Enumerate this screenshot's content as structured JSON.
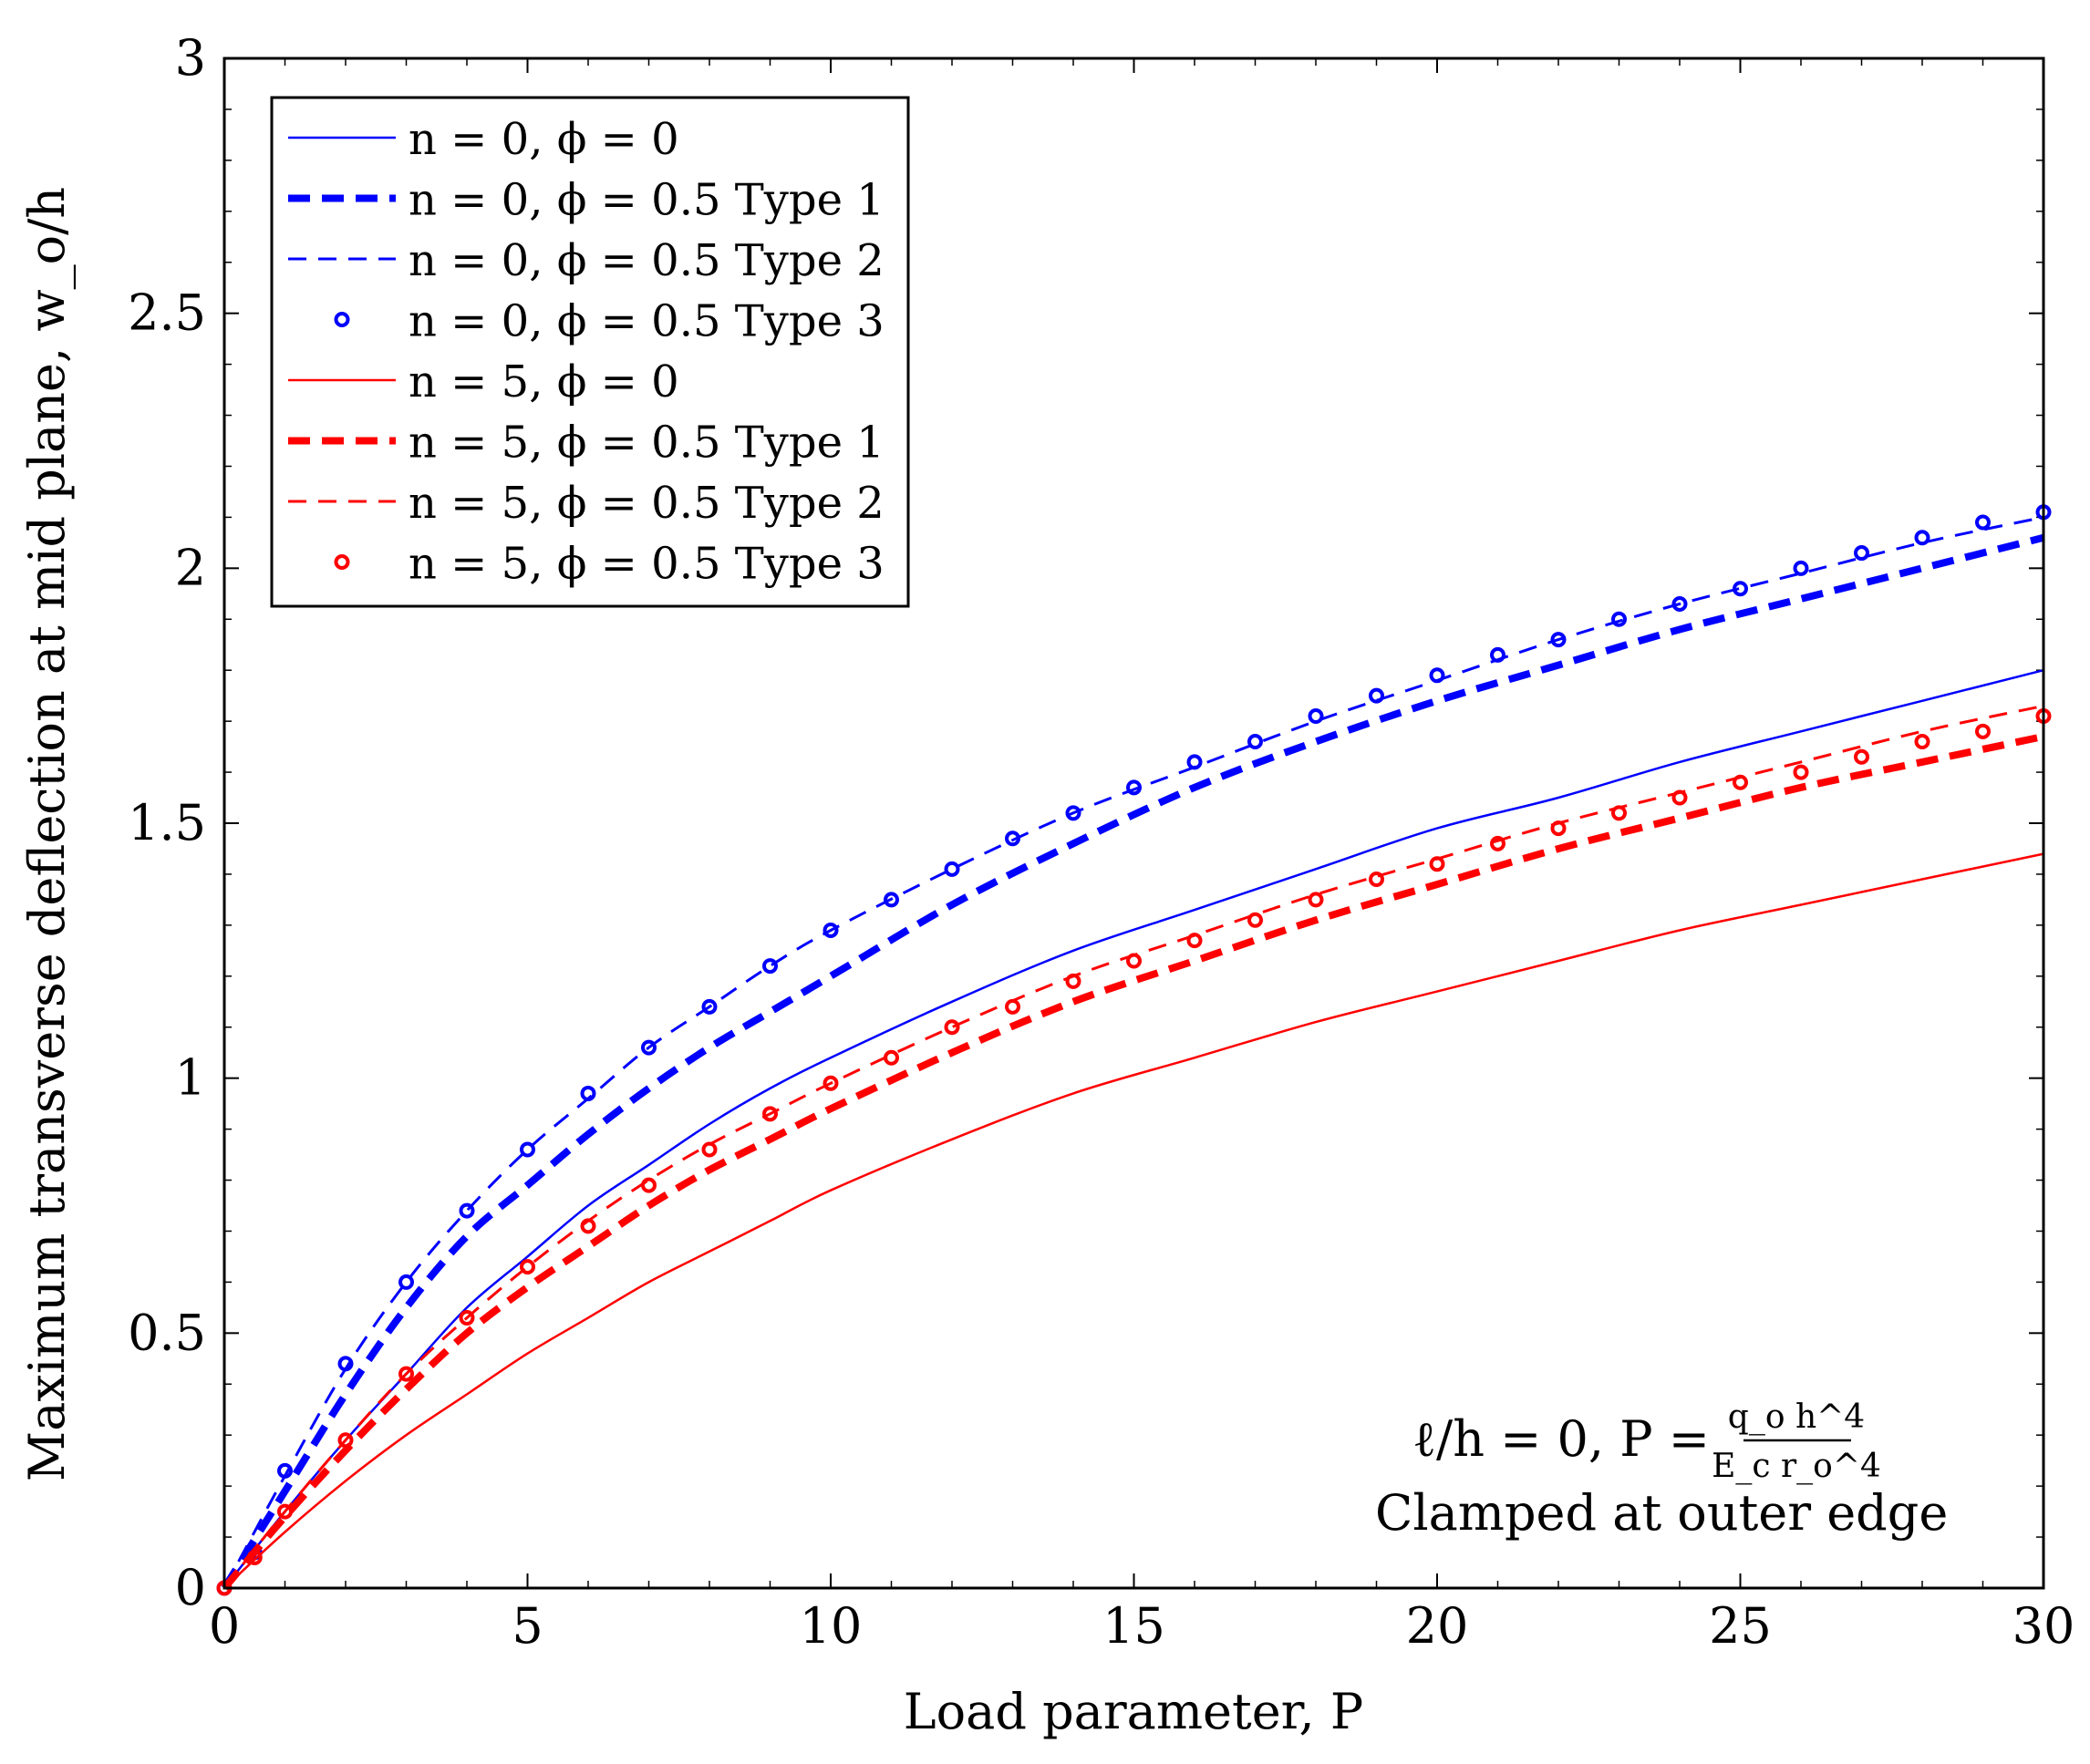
{
  "chart_data": {
    "type": "line",
    "xlabel": "Load parameter, P",
    "ylabel": "Maximum transverse deflection at mid plane, w_o/h",
    "xlim": [
      0,
      30
    ],
    "ylim": [
      0,
      3
    ],
    "xticks": [
      0,
      5,
      10,
      15,
      20,
      25,
      30
    ],
    "yticks": [
      0,
      0.5,
      1,
      1.5,
      2,
      2.5,
      3
    ],
    "xtick_labels": [
      "0",
      "5",
      "10",
      "15",
      "20",
      "25",
      "30"
    ],
    "ytick_labels": [
      "0",
      "0.5",
      "1",
      "1.5",
      "2",
      "2.5",
      "3"
    ],
    "grid": false,
    "legend_position": "top-left",
    "annotation": {
      "line1": "ℓ/h = 0,  P =",
      "frac_num": "q_o h^4",
      "frac_den": "E_c r_o^4",
      "line2": "Clamped at outer edge"
    },
    "series": [
      {
        "name": "n = 0, ϕ = 0",
        "color": "#0000ff",
        "style": "solid",
        "x": [
          0,
          1,
          2,
          3,
          4,
          5,
          6,
          7,
          8,
          9,
          10,
          12,
          14,
          16,
          18,
          20,
          22,
          24,
          26,
          28,
          30
        ],
        "y": [
          0,
          0.15,
          0.29,
          0.42,
          0.55,
          0.65,
          0.75,
          0.83,
          0.91,
          0.98,
          1.04,
          1.15,
          1.25,
          1.33,
          1.41,
          1.49,
          1.55,
          1.62,
          1.68,
          1.74,
          1.8
        ]
      },
      {
        "name": "n = 0, ϕ = 0.5 Type 1",
        "color": "#0000ff",
        "style": "thick-dash",
        "x": [
          0,
          1,
          2,
          3,
          4,
          5,
          6,
          7,
          8,
          9,
          10,
          12,
          14,
          16,
          18,
          20,
          22,
          24,
          26,
          28,
          30
        ],
        "y": [
          0,
          0.19,
          0.38,
          0.55,
          0.69,
          0.79,
          0.89,
          0.98,
          1.06,
          1.13,
          1.2,
          1.34,
          1.46,
          1.57,
          1.66,
          1.74,
          1.81,
          1.88,
          1.94,
          2.0,
          2.06
        ]
      },
      {
        "name": "n = 0, ϕ = 0.5 Type 2",
        "color": "#0000ff",
        "style": "dash",
        "x": [
          0,
          1,
          2,
          3,
          4,
          5,
          6,
          7,
          8,
          9,
          10,
          12,
          14,
          16,
          18,
          20,
          22,
          24,
          26,
          28,
          30
        ],
        "y": [
          0,
          0.22,
          0.43,
          0.6,
          0.74,
          0.86,
          0.96,
          1.06,
          1.14,
          1.22,
          1.29,
          1.41,
          1.52,
          1.61,
          1.7,
          1.78,
          1.86,
          1.93,
          1.99,
          2.05,
          2.1
        ]
      },
      {
        "name": "n = 0, ϕ = 0.5 Type 3",
        "color": "#0000ff",
        "style": "marker",
        "x": [
          0,
          0.5,
          1,
          2,
          3,
          4,
          5,
          6,
          7,
          8,
          9,
          10,
          11,
          12,
          13,
          14,
          15,
          16,
          17,
          18,
          19,
          20,
          21,
          22,
          23,
          24,
          25,
          26,
          27,
          28,
          29,
          30
        ],
        "y": [
          0,
          0.07,
          0.23,
          0.44,
          0.6,
          0.74,
          0.86,
          0.97,
          1.06,
          1.14,
          1.22,
          1.29,
          1.35,
          1.41,
          1.47,
          1.52,
          1.57,
          1.62,
          1.66,
          1.71,
          1.75,
          1.79,
          1.83,
          1.86,
          1.9,
          1.93,
          1.96,
          2.0,
          2.03,
          2.06,
          2.09,
          2.11
        ]
      },
      {
        "name": "n = 5, ϕ = 0",
        "color": "#ff0000",
        "style": "solid",
        "x": [
          0,
          1,
          2,
          3,
          4,
          5,
          6,
          7,
          8,
          9,
          10,
          12,
          14,
          16,
          18,
          20,
          22,
          24,
          26,
          28,
          30
        ],
        "y": [
          0,
          0.11,
          0.21,
          0.3,
          0.38,
          0.46,
          0.53,
          0.6,
          0.66,
          0.72,
          0.78,
          0.88,
          0.97,
          1.04,
          1.11,
          1.17,
          1.23,
          1.29,
          1.34,
          1.39,
          1.44
        ]
      },
      {
        "name": "n = 5, ϕ = 0.5 Type 1",
        "color": "#ff0000",
        "style": "thick-dash",
        "x": [
          0,
          1,
          2,
          3,
          4,
          5,
          6,
          7,
          8,
          9,
          10,
          12,
          14,
          16,
          18,
          20,
          22,
          24,
          26,
          28,
          30
        ],
        "y": [
          0,
          0.14,
          0.27,
          0.39,
          0.5,
          0.59,
          0.67,
          0.75,
          0.82,
          0.88,
          0.94,
          1.05,
          1.15,
          1.23,
          1.31,
          1.38,
          1.45,
          1.51,
          1.57,
          1.62,
          1.67
        ]
      },
      {
        "name": "n = 5, ϕ = 0.5 Type 2",
        "color": "#ff0000",
        "style": "dash",
        "x": [
          0,
          1,
          2,
          3,
          4,
          5,
          6,
          7,
          8,
          9,
          10,
          12,
          14,
          16,
          18,
          20,
          22,
          24,
          26,
          28,
          30
        ],
        "y": [
          0,
          0.15,
          0.29,
          0.42,
          0.53,
          0.63,
          0.72,
          0.8,
          0.87,
          0.93,
          0.99,
          1.1,
          1.2,
          1.28,
          1.36,
          1.43,
          1.5,
          1.56,
          1.62,
          1.68,
          1.73
        ]
      },
      {
        "name": "n = 5, ϕ = 0.5 Type 3",
        "color": "#ff0000",
        "style": "marker",
        "x": [
          0,
          0.5,
          1,
          2,
          3,
          4,
          5,
          6,
          7,
          8,
          9,
          10,
          11,
          12,
          13,
          14,
          15,
          16,
          17,
          18,
          19,
          20,
          21,
          22,
          23,
          24,
          25,
          26,
          27,
          28,
          29,
          30
        ],
        "y": [
          0,
          0.06,
          0.15,
          0.29,
          0.42,
          0.53,
          0.63,
          0.71,
          0.79,
          0.86,
          0.93,
          0.99,
          1.04,
          1.1,
          1.14,
          1.19,
          1.23,
          1.27,
          1.31,
          1.35,
          1.39,
          1.42,
          1.46,
          1.49,
          1.52,
          1.55,
          1.58,
          1.6,
          1.63,
          1.66,
          1.68,
          1.71
        ]
      }
    ]
  }
}
